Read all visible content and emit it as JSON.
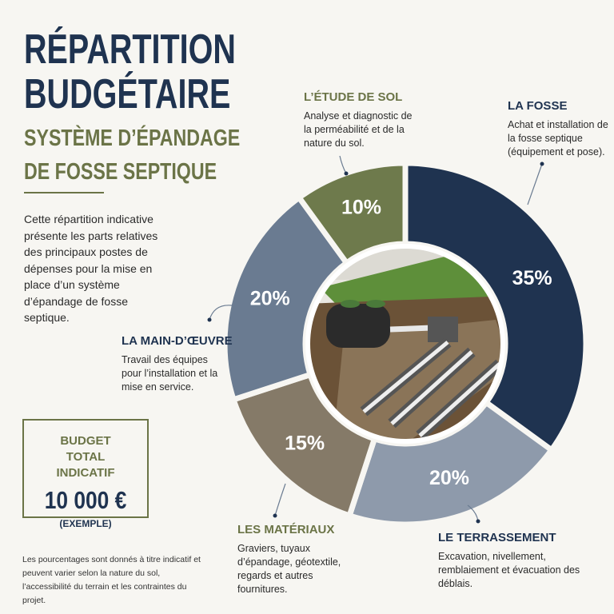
{
  "chart_data": {
    "type": "donut",
    "title": "RÉPARTITION BUDGÉTAIRE",
    "subtitle": "SYSTÈME D’ÉPANDAGE DE FOSSE SEPTIQUE",
    "intro": "Cette répartition indicative présente les parts relatives des principaux postes de dépenses pour la mise en place d’un système d’épandage de fosse septique.",
    "categories": [
      "LA FOSSE",
      "LE TERRASSEMENT",
      "LES MATÉRIAUX",
      "LA MAIN-D’ŒUVRE",
      "L’ÉTUDE DE SOL"
    ],
    "descriptions": [
      "Achat et installation de la fosse septique (équipement et pose).",
      "Excavation, nivellement, remblaiement et évacuation des déblais.",
      "Graviers, tuyaux d’épandage, géotextile, regards et autres fournitures.",
      "Travail des équipes pour l’installation et la mise en service.",
      "Analyse et diagnostic de la perméabilité et de la nature du sol."
    ],
    "values": [
      35,
      20,
      15,
      20,
      10
    ],
    "value_labels": [
      "35%",
      "20%",
      "15%",
      "20%",
      "10%"
    ],
    "colors": [
      "#1f3350",
      "#8e9aab",
      "#857a68",
      "#6a7b91",
      "#6e7a4c"
    ],
    "budget": {
      "label": "BUDGET TOTAL INDICATIF",
      "amount": "10 000 €",
      "note": "(EXEMPLE)"
    },
    "footnote": "Les pourcentages sont donnés à titre indicatif et peuvent varier selon la nature du sol, l’accessibilité du terrain et les contraintes du projet."
  }
}
